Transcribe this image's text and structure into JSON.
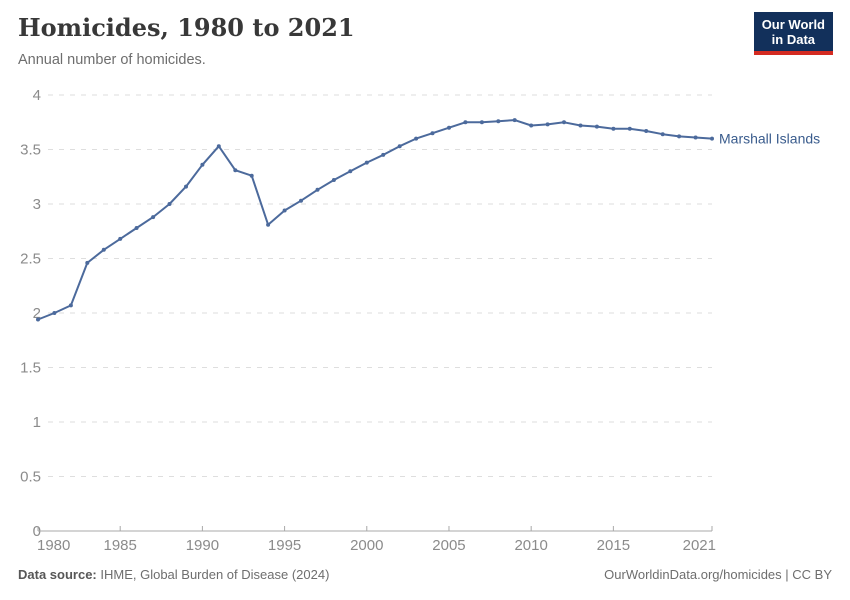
{
  "header": {
    "title": "Homicides, 1980 to 2021",
    "subtitle": "Annual number of homicides."
  },
  "logo": {
    "line1": "Our World",
    "line2": "in Data",
    "bg_color": "#12305B",
    "accent_color": "#D42B21"
  },
  "chart_data": {
    "type": "line",
    "title": "Homicides, 1980 to 2021",
    "subtitle": "Annual number of homicides.",
    "xlim": [
      1980,
      2021
    ],
    "ylim": [
      0,
      4
    ],
    "x_ticks": [
      1980,
      1985,
      1990,
      1995,
      2000,
      2005,
      2010,
      2015,
      2021
    ],
    "y_ticks": [
      0,
      0.5,
      1,
      1.5,
      2,
      2.5,
      3,
      3.5,
      4
    ],
    "grid": "horizontal-dashed",
    "legend_position": "end-of-line-label",
    "series": [
      {
        "name": "Marshall Islands",
        "color": "#4C6A9C",
        "x": [
          1980,
          1981,
          1982,
          1983,
          1984,
          1985,
          1986,
          1987,
          1988,
          1989,
          1990,
          1991,
          1992,
          1993,
          1994,
          1995,
          1996,
          1997,
          1998,
          1999,
          2000,
          2001,
          2002,
          2003,
          2004,
          2005,
          2006,
          2007,
          2008,
          2009,
          2010,
          2011,
          2012,
          2013,
          2014,
          2015,
          2016,
          2017,
          2018,
          2019,
          2020,
          2021
        ],
        "values": [
          1.94,
          2.0,
          2.07,
          2.46,
          2.58,
          2.68,
          2.78,
          2.88,
          3.0,
          3.16,
          3.36,
          3.53,
          3.31,
          3.26,
          2.81,
          2.94,
          3.03,
          3.13,
          3.22,
          3.3,
          3.38,
          3.45,
          3.53,
          3.6,
          3.65,
          3.7,
          3.75,
          3.75,
          3.76,
          3.77,
          3.72,
          3.73,
          3.75,
          3.72,
          3.71,
          3.69,
          3.69,
          3.67,
          3.64,
          3.62,
          3.61,
          3.6
        ]
      }
    ]
  },
  "colors": {
    "line": "#4C6A9C",
    "entity_label": "#3A5C8D",
    "grid": "#dedede",
    "axis": "#a8a8a8",
    "tick_label": "#8b8b8b"
  },
  "footer": {
    "source_label": "Data source:",
    "source_text": " IHME, Global Burden of Disease (2024)",
    "license_text": "OurWorldinData.org/homicides | CC BY"
  }
}
